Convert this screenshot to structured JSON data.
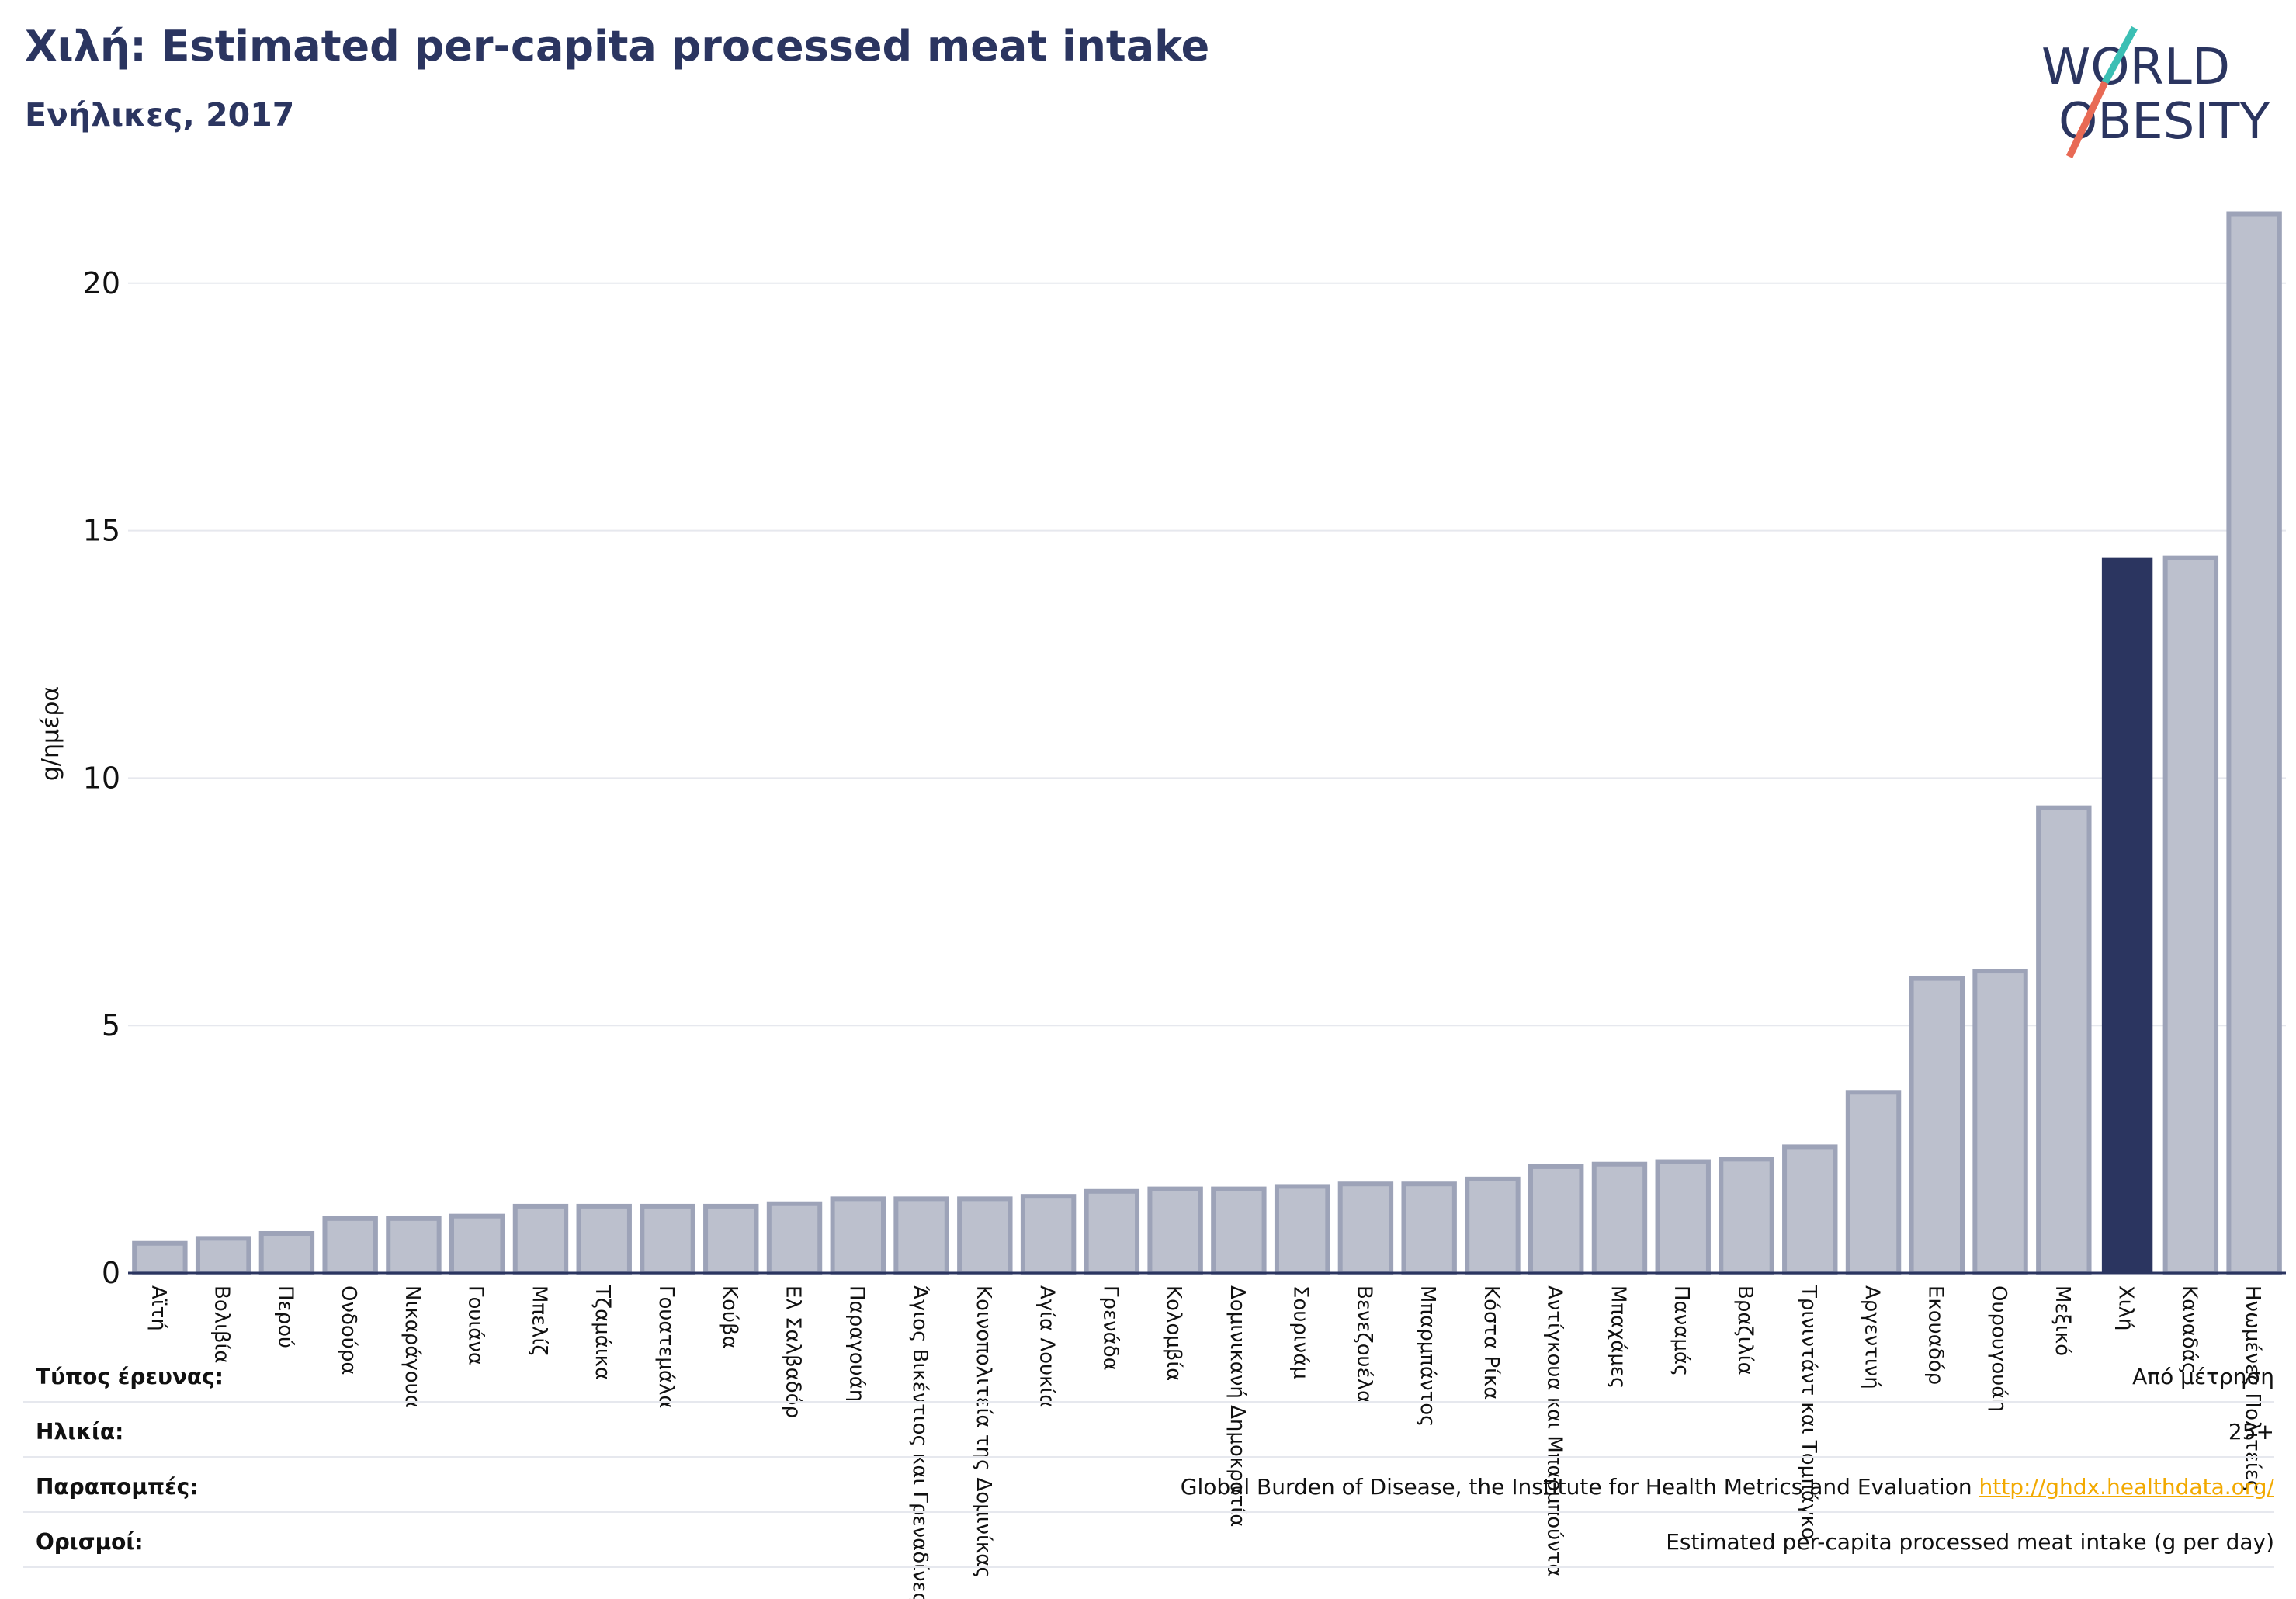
{
  "header": {
    "title": "Χιλή: Estimated per-capita processed meat intake",
    "subtitle": "Ενήλικες, 2017"
  },
  "logo": {
    "line1": "WORLD",
    "line2": "OBESITY",
    "colors": {
      "text": "#2b3560",
      "slash_teal": "#3bbfb4",
      "slash_coral": "#e86a55"
    }
  },
  "colors": {
    "bar": "#bcc0cd",
    "bar_stroke": "#9da3b8",
    "highlight": "#2b3560",
    "grid": "#e6e8ee",
    "axis": "#2b3560"
  },
  "chart_data": {
    "type": "bar",
    "ylabel": "g/ημέρα",
    "ylim": [
      0,
      21.8
    ],
    "yticks": [
      0,
      5,
      10,
      15,
      20
    ],
    "grid": true,
    "highlight": "Χιλή",
    "categories": [
      "Αϊτή",
      "Βολιβία",
      "Περού",
      "Ονδούρα",
      "Νικαράγουα",
      "Γουιάνα",
      "Μπελίζ",
      "Τζαμάικα",
      "Γουατεμάλα",
      "Κούβα",
      "Ελ Σαλβαδόρ",
      "Παραγουάη",
      "Άγιος Βικέντιος και Γρεναδίνες",
      "Κοινοπολιτεία της Δομινίκας",
      "Αγία Λουκία",
      "Γρενάδα",
      "Κολομβία",
      "Δομινικανή Δημοκρατία",
      "Σουρινάμ",
      "Βενεζουέλα",
      "Μπαρμπάντος",
      "Κόστα Ρίκα",
      "Αντίγκουα και Μπαρμπούντα",
      "Μπαχάμες",
      "Παναμάς",
      "Βραζιλία",
      "Τρινιντάντ και Τομπάγκο",
      "Αργεντινή",
      "Εκουαδόρ",
      "Ουρουγουάη",
      "Μεξικό",
      "Χιλή",
      "Καναδάς",
      "Ηνωμένες Πολιτείες"
    ],
    "values": [
      0.6,
      0.7,
      0.8,
      1.1,
      1.1,
      1.15,
      1.35,
      1.35,
      1.35,
      1.35,
      1.4,
      1.5,
      1.5,
      1.5,
      1.55,
      1.65,
      1.7,
      1.7,
      1.75,
      1.8,
      1.8,
      1.9,
      2.15,
      2.2,
      2.25,
      2.3,
      2.55,
      3.65,
      5.95,
      6.1,
      9.4,
      14.45,
      14.45,
      21.4
    ]
  },
  "meta": [
    {
      "key": "Τύπος έρευνας:",
      "value": "Από μέτρηση"
    },
    {
      "key": "Ηλικία:",
      "value": "25+"
    },
    {
      "key": "Παραπομπές:",
      "value": "Global Burden of Disease, the Institute for Health Metrics and Evaluation",
      "link": "http://ghdx.healthdata.org/"
    },
    {
      "key": "Ορισμοί:",
      "value": "Estimated per-capita processed meat intake (g per day)"
    }
  ]
}
